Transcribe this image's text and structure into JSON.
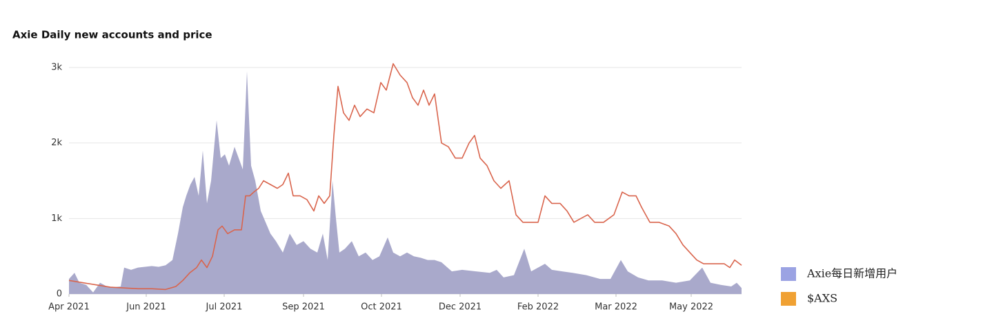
{
  "chart_data": {
    "type": "area-line",
    "title": "Axie Daily new accounts and price",
    "xlim": [
      2021.25,
      2022.42
    ],
    "xticks": [
      {
        "value": 2021.25,
        "label": "Apr 2021"
      },
      {
        "value": 2021.3844,
        "label": "Jun 2021"
      },
      {
        "value": 2021.52,
        "label": "Jul 2021"
      },
      {
        "value": 2021.658,
        "label": "Sep 2021"
      },
      {
        "value": 2021.7936,
        "label": "Oct 2021"
      },
      {
        "value": 2021.9304,
        "label": "Dec 2021"
      },
      {
        "value": 2022.066,
        "label": "Feb 2022"
      },
      {
        "value": 2022.2016,
        "label": "Mar 2022"
      },
      {
        "value": 2022.3324,
        "label": "May 2022"
      }
    ],
    "ylim": [
      0,
      3000
    ],
    "yticks": [
      0,
      {
        "value": 1000,
        "label": "1k"
      },
      {
        "value": 2000,
        "label": "2k"
      },
      {
        "value": 3000,
        "label": "3k"
      }
    ],
    "grid": true,
    "legend": "bottom-right",
    "series": [
      {
        "name": "Axie每日新增用户",
        "kind": "area",
        "color": "#a9a9cb",
        "legend_color": "#9ba3e3",
        "x": [
          2021.25,
          2021.2596,
          2021.268,
          2021.28,
          2021.292,
          2021.304,
          2021.316,
          2021.328,
          2021.34,
          2021.346,
          2021.358,
          2021.37,
          2021.382,
          2021.394,
          2021.406,
          2021.418,
          2021.43,
          2021.4396,
          2021.448,
          2021.454,
          2021.4612,
          2021.4684,
          2021.4756,
          2021.4828,
          2021.49,
          2021.4972,
          2021.5068,
          2021.514,
          2021.5212,
          2021.5284,
          2021.538,
          2021.5452,
          2021.5524,
          2021.5596,
          2021.5668,
          2021.574,
          2021.5836,
          2021.592,
          2021.6004,
          2021.61,
          2021.622,
          2021.634,
          2021.646,
          2021.658,
          2021.67,
          2021.682,
          2021.6916,
          2021.7,
          2021.7084,
          2021.7144,
          2021.7204,
          2021.73,
          2021.742,
          2021.754,
          2021.766,
          2021.778,
          2021.79,
          2021.8044,
          2021.814,
          2021.826,
          2021.838,
          2021.85,
          2021.862,
          2021.874,
          2021.886,
          2021.898,
          2021.916,
          2021.934,
          2021.958,
          2021.982,
          2021.994,
          2022.006,
          2022.024,
          2022.042,
          2022.054,
          2022.078,
          2022.09,
          2022.108,
          2022.126,
          2022.15,
          2022.174,
          2022.192,
          2022.21,
          2022.222,
          2022.24,
          2022.258,
          2022.282,
          2022.306,
          2022.33,
          2022.3516,
          2022.366,
          2022.384,
          2022.402,
          2022.4116,
          2022.42
        ],
        "values": [
          200,
          280,
          150,
          120,
          20,
          150,
          100,
          90,
          100,
          350,
          320,
          350,
          360,
          370,
          360,
          380,
          450,
          800,
          1150,
          1300,
          1450,
          1550,
          1300,
          1900,
          1200,
          1500,
          2300,
          1800,
          1850,
          1700,
          1950,
          1800,
          1650,
          2950,
          1700,
          1500,
          1100,
          950,
          800,
          700,
          550,
          800,
          650,
          700,
          600,
          550,
          800,
          450,
          1500,
          1000,
          550,
          600,
          700,
          500,
          550,
          450,
          500,
          750,
          550,
          500,
          550,
          500,
          480,
          450,
          450,
          420,
          300,
          320,
          300,
          280,
          320,
          220,
          250,
          600,
          300,
          400,
          320,
          300,
          280,
          250,
          200,
          200,
          450,
          300,
          220,
          180,
          180,
          150,
          180,
          350,
          150,
          120,
          100,
          150,
          80
        ]
      },
      {
        "name": "$AXS",
        "kind": "line",
        "color": "#d9644c",
        "legend_color": "#f0a133",
        "x": [
          2021.25,
          2021.274,
          2021.298,
          2021.322,
          2021.346,
          2021.37,
          2021.394,
          2021.418,
          2021.436,
          2021.448,
          2021.46,
          2021.472,
          2021.4804,
          2021.49,
          2021.4996,
          2021.5092,
          2021.5164,
          2021.526,
          2021.538,
          2021.55,
          2021.5572,
          2021.5644,
          2021.5716,
          2021.58,
          2021.5884,
          2021.6004,
          2021.6124,
          2021.622,
          2021.6316,
          2021.64,
          2021.652,
          2021.664,
          2021.676,
          2021.6844,
          2021.694,
          2021.7036,
          2021.7108,
          2021.718,
          2021.7276,
          2021.7372,
          2021.7468,
          2021.7564,
          2021.7684,
          2021.7804,
          2021.7924,
          2021.802,
          2021.814,
          2021.826,
          2021.838,
          2021.8476,
          2021.8572,
          2021.8668,
          2021.8764,
          2021.886,
          2021.898,
          2021.91,
          2021.922,
          2021.934,
          2021.946,
          2021.9556,
          2021.9652,
          2021.9772,
          2021.9892,
          2022.0012,
          2022.0156,
          2022.0276,
          2022.0396,
          2022.0516,
          2022.066,
          2022.078,
          2022.09,
          2022.1044,
          2022.1164,
          2022.1284,
          2022.1404,
          2022.1524,
          2022.1644,
          2022.18,
          2022.198,
          2022.2124,
          2022.2244,
          2022.2364,
          2022.246,
          2022.2604,
          2022.276,
          2022.294,
          2022.306,
          2022.318,
          2022.33,
          2022.342,
          2022.354,
          2022.372,
          2022.39,
          2022.3996,
          2022.408,
          2022.42
        ],
        "values": [
          180,
          150,
          120,
          90,
          80,
          70,
          70,
          60,
          100,
          180,
          280,
          350,
          450,
          350,
          500,
          850,
          900,
          800,
          850,
          850,
          1300,
          1300,
          1350,
          1400,
          1500,
          1450,
          1400,
          1450,
          1600,
          1300,
          1300,
          1250,
          1100,
          1300,
          1200,
          1300,
          2100,
          2750,
          2400,
          2300,
          2500,
          2350,
          2450,
          2400,
          2800,
          2700,
          3050,
          2900,
          2800,
          2600,
          2500,
          2700,
          2500,
          2650,
          2000,
          1950,
          1800,
          1800,
          2000,
          2100,
          1800,
          1700,
          1500,
          1400,
          1500,
          1050,
          950,
          950,
          950,
          1300,
          1200,
          1200,
          1100,
          950,
          1000,
          1050,
          950,
          950,
          1050,
          1350,
          1300,
          1300,
          1150,
          950,
          950,
          900,
          800,
          650,
          550,
          450,
          400,
          400,
          400,
          350,
          450,
          380
        ]
      }
    ]
  }
}
